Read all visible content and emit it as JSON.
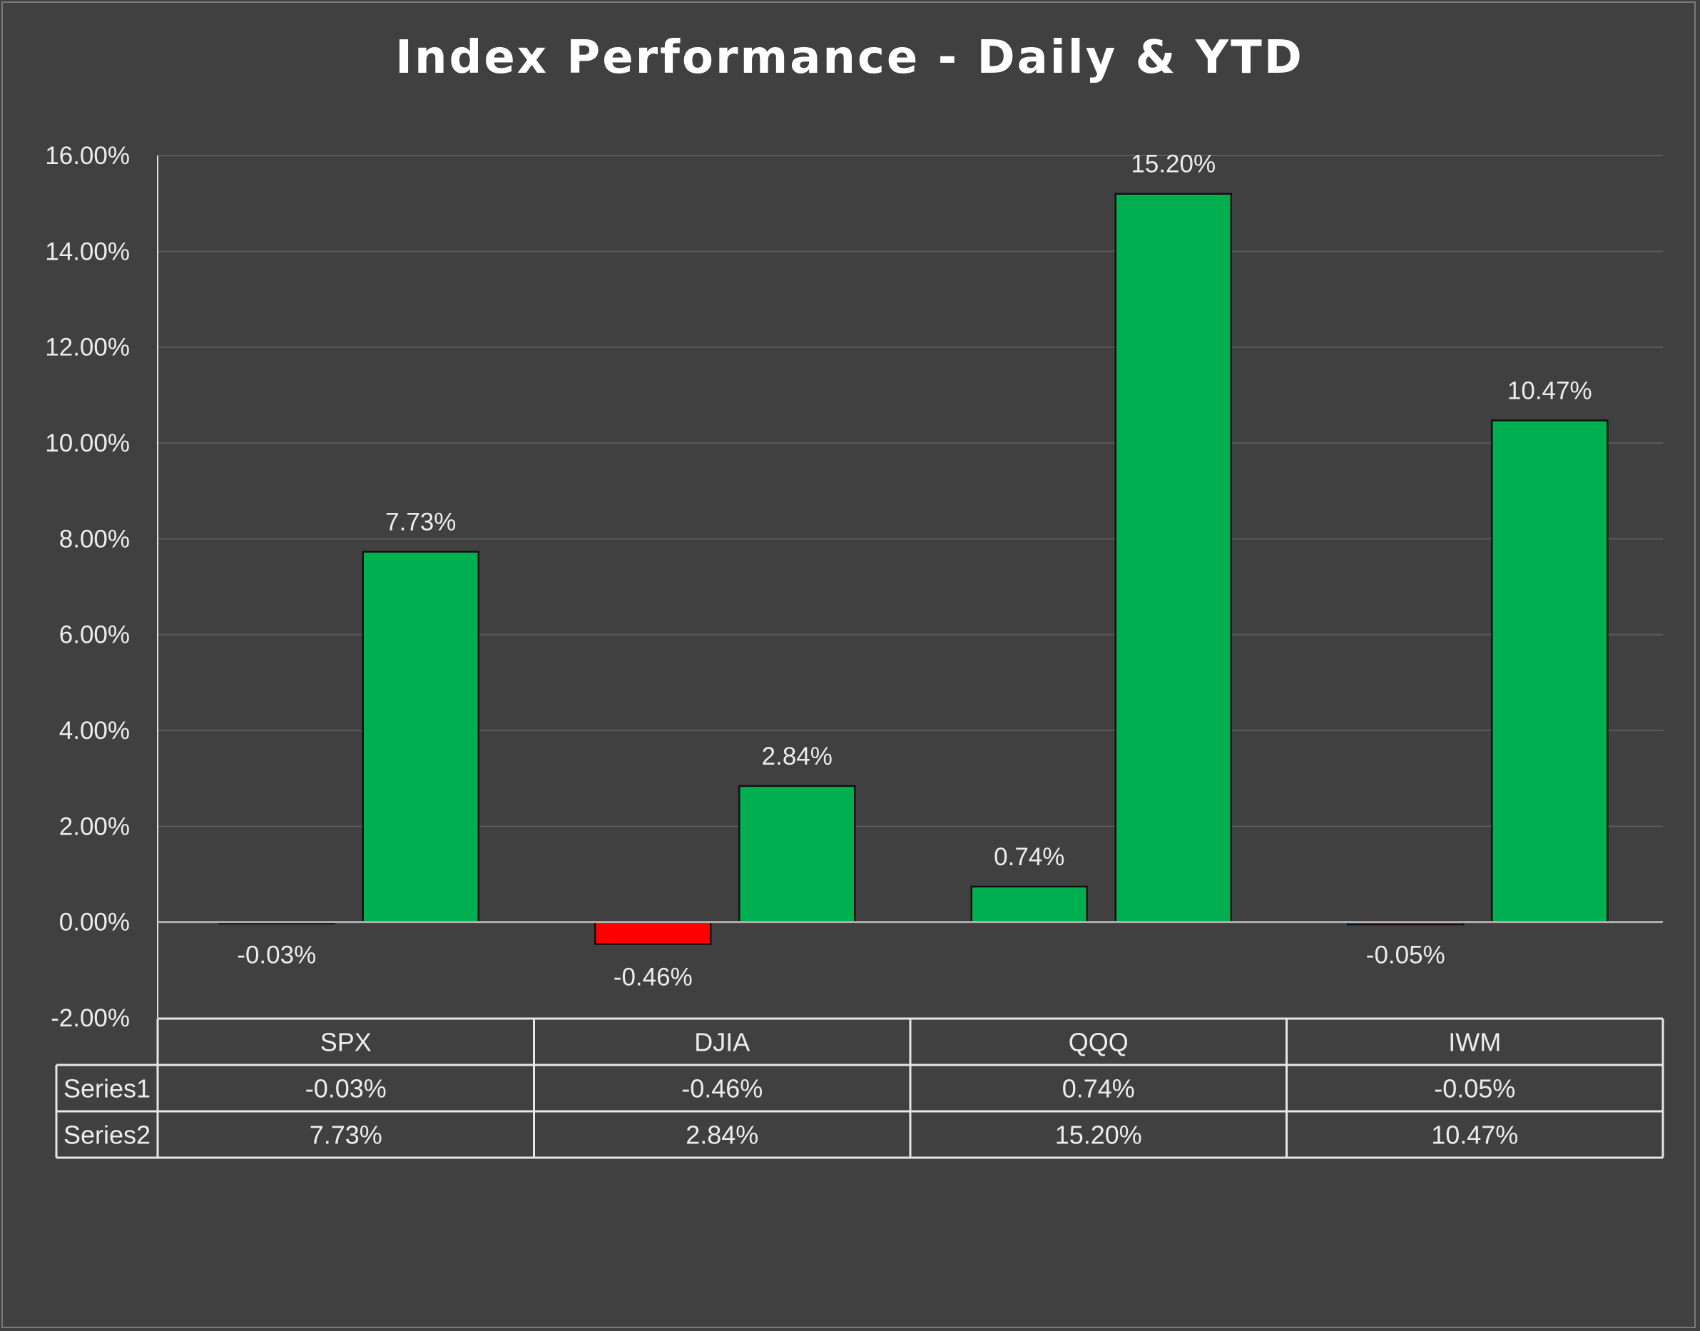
{
  "chart_data": {
    "type": "bar",
    "title": "Index Performance - Daily & YTD",
    "categories": [
      "SPX",
      "DJIA",
      "QQQ",
      "IWM"
    ],
    "series": [
      {
        "name": "Series1",
        "values": [
          -0.03,
          -0.46,
          0.74,
          -0.05
        ],
        "labels": [
          "-0.03%",
          "-0.46%",
          "0.74%",
          "-0.05%"
        ]
      },
      {
        "name": "Series2",
        "values": [
          7.73,
          2.84,
          15.2,
          10.47
        ],
        "labels": [
          "7.73%",
          "2.84%",
          "15.20%",
          "10.47%"
        ]
      }
    ],
    "ylim": [
      -2,
      16
    ],
    "yticks": [
      16,
      14,
      12,
      10,
      8,
      6,
      4,
      2,
      0,
      -2
    ],
    "ytick_labels": [
      "16.00%",
      "14.00%",
      "12.00%",
      "10.00%",
      "8.00%",
      "6.00%",
      "4.00%",
      "2.00%",
      "0.00%",
      "-2.00%"
    ],
    "xlabel": "",
    "ylabel": "",
    "grid": true,
    "legend": "data table below chart",
    "colors": {
      "positive": "#00b050",
      "negative": "#ff0000",
      "background": "#404040",
      "gridline": "#5a5a5a",
      "zero_line": "#b0b0b0",
      "table_border": "#e6e6e6"
    }
  }
}
